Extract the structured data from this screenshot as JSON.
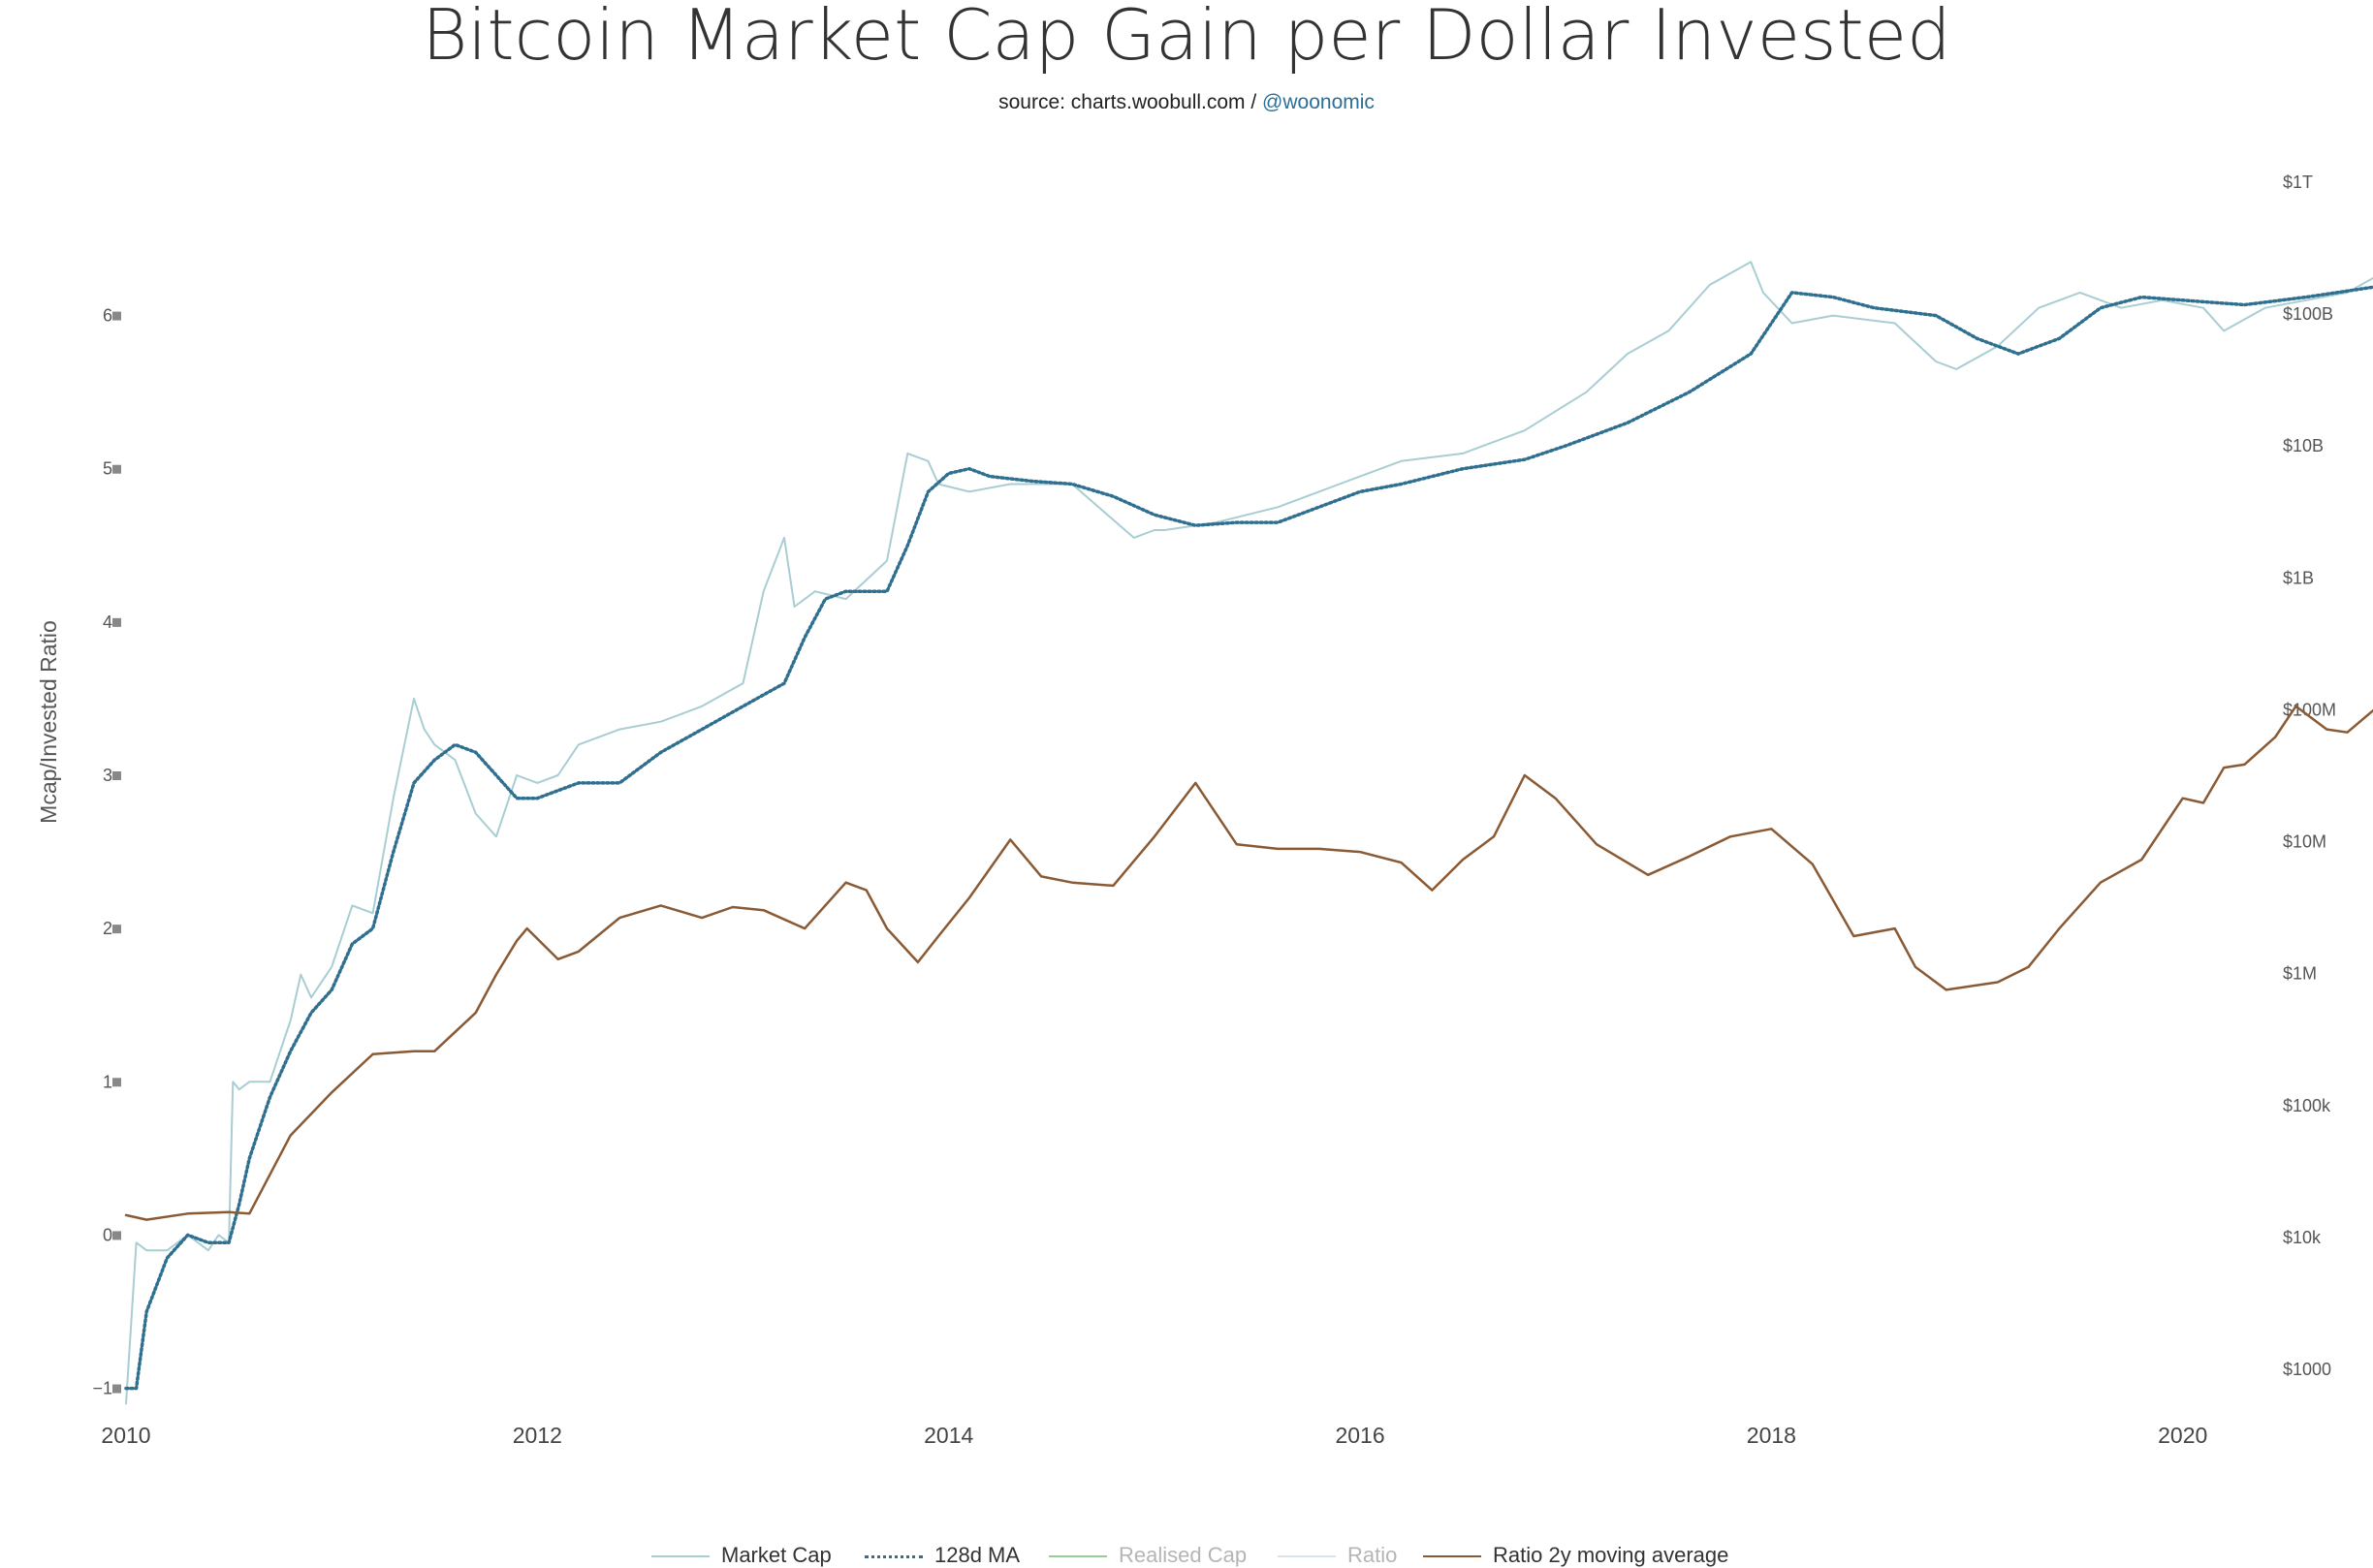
{
  "header": {
    "title": "Bitcoin Market Cap Gain per Dollar Invested",
    "subtitle_prefix": "source: charts.woobull.com / ",
    "subtitle_handle": "@woonomic"
  },
  "colors": {
    "market_cap": "#a8cdd3",
    "ma128": "#2f6f8f",
    "realised_cap": "#98cc98",
    "ratio": "#d9e3ea",
    "ratio_2y": "#8a5a34",
    "axis_text": "#555555",
    "handle": "#2a6f97"
  },
  "chart_data": {
    "type": "line",
    "title": "Bitcoin Market Cap Gain per Dollar Invested",
    "subtitle": "source: charts.woobull.com / @woonomic",
    "ylabel": "Mcap/Invested Ratio",
    "xlim": [
      2010.0,
      2021.5
    ],
    "ylim": [
      -1.3,
      7.3
    ],
    "y2_scale": "log",
    "y2_ticks": [
      "$1000",
      "$10k",
      "$100k",
      "$1M",
      "$10M",
      "$100M",
      "$1B",
      "$10B",
      "$100B",
      "$1T"
    ],
    "y_ticks": [
      "−1",
      "0",
      "1",
      "2",
      "3",
      "4",
      "5",
      "6"
    ],
    "x_ticks": [
      "2010",
      "2012",
      "2014",
      "2016",
      "2018",
      "2020"
    ],
    "grid": false,
    "legend_position": "bottom",
    "series": [
      {
        "name": "Market Cap",
        "axis": "y",
        "x": [
          2010.0,
          2010.05,
          2010.1,
          2010.2,
          2010.3,
          2010.4,
          2010.45,
          2010.5,
          2010.52,
          2010.55,
          2010.6,
          2010.7,
          2010.8,
          2010.85,
          2010.9,
          2011.0,
          2011.1,
          2011.2,
          2011.3,
          2011.4,
          2011.45,
          2011.5,
          2011.6,
          2011.7,
          2011.8,
          2011.9,
          2012.0,
          2012.1,
          2012.2,
          2012.4,
          2012.6,
          2012.8,
          2013.0,
          2013.1,
          2013.2,
          2013.25,
          2013.35,
          2013.5,
          2013.7,
          2013.8,
          2013.9,
          2013.95,
          2014.1,
          2014.3,
          2014.6,
          2014.9,
          2015.0,
          2015.05,
          2015.3,
          2015.6,
          2015.9,
          2016.2,
          2016.5,
          2016.8,
          2017.1,
          2017.3,
          2017.5,
          2017.7,
          2017.9,
          2017.96,
          2018.1,
          2018.3,
          2018.6,
          2018.8,
          2018.9,
          2019.1,
          2019.3,
          2019.5,
          2019.7,
          2019.9,
          2020.1,
          2020.2,
          2020.4,
          2020.6,
          2020.8,
          2021.0,
          2021.1
        ],
        "values": [
          -1.1,
          -0.05,
          -0.1,
          -0.1,
          0.0,
          -0.1,
          0.0,
          -0.05,
          1.0,
          0.95,
          1.0,
          1.0,
          1.4,
          1.7,
          1.55,
          1.75,
          2.15,
          2.1,
          2.85,
          3.5,
          3.3,
          3.2,
          3.1,
          2.75,
          2.6,
          3.0,
          2.95,
          3.0,
          3.2,
          3.3,
          3.35,
          3.45,
          3.6,
          4.2,
          4.55,
          4.1,
          4.2,
          4.15,
          4.4,
          5.1,
          5.05,
          4.9,
          4.85,
          4.9,
          4.9,
          4.55,
          4.6,
          4.6,
          4.65,
          4.75,
          4.9,
          5.05,
          5.1,
          5.25,
          5.5,
          5.75,
          5.9,
          6.2,
          6.35,
          6.15,
          5.95,
          6.0,
          5.95,
          5.7,
          5.65,
          5.8,
          6.05,
          6.15,
          6.05,
          6.1,
          6.05,
          5.9,
          6.05,
          6.1,
          6.15,
          6.3,
          6.4
        ]
      },
      {
        "name": "128d MA",
        "axis": "y",
        "x": [
          2010.0,
          2010.05,
          2010.1,
          2010.2,
          2010.3,
          2010.4,
          2010.5,
          2010.55,
          2010.6,
          2010.7,
          2010.8,
          2010.9,
          2011.0,
          2011.1,
          2011.2,
          2011.3,
          2011.4,
          2011.5,
          2011.6,
          2011.7,
          2011.8,
          2011.9,
          2012.0,
          2012.2,
          2012.4,
          2012.6,
          2012.8,
          2013.0,
          2013.2,
          2013.3,
          2013.4,
          2013.5,
          2013.7,
          2013.8,
          2013.9,
          2014.0,
          2014.1,
          2014.2,
          2014.4,
          2014.6,
          2014.8,
          2015.0,
          2015.2,
          2015.4,
          2015.6,
          2015.8,
          2016.0,
          2016.2,
          2016.5,
          2016.8,
          2017.0,
          2017.3,
          2017.6,
          2017.9,
          2018.1,
          2018.3,
          2018.5,
          2018.8,
          2019.0,
          2019.2,
          2019.4,
          2019.6,
          2019.8,
          2020.0,
          2020.3,
          2020.6,
          2020.9,
          2021.1
        ],
        "values": [
          -1.0,
          -1.0,
          -0.5,
          -0.15,
          0.0,
          -0.05,
          -0.05,
          0.2,
          0.5,
          0.9,
          1.2,
          1.45,
          1.6,
          1.9,
          2.0,
          2.5,
          2.95,
          3.1,
          3.2,
          3.15,
          3.0,
          2.85,
          2.85,
          2.95,
          2.95,
          3.15,
          3.3,
          3.45,
          3.6,
          3.9,
          4.15,
          4.2,
          4.2,
          4.5,
          4.85,
          4.97,
          5.0,
          4.95,
          4.92,
          4.9,
          4.82,
          4.7,
          4.63,
          4.65,
          4.65,
          4.75,
          4.85,
          4.9,
          5.0,
          5.06,
          5.15,
          5.3,
          5.5,
          5.75,
          6.15,
          6.12,
          6.05,
          6.0,
          5.85,
          5.75,
          5.85,
          6.05,
          6.12,
          6.1,
          6.07,
          6.12,
          6.18,
          6.22
        ]
      },
      {
        "name": "Realised Cap",
        "axis": "y2",
        "x": [],
        "values": []
      },
      {
        "name": "Ratio",
        "axis": "y",
        "x": [],
        "values": []
      },
      {
        "name": "Ratio 2y moving average",
        "axis": "y",
        "x": [
          2010.0,
          2010.1,
          2010.3,
          2010.5,
          2010.6,
          2010.8,
          2011.0,
          2011.2,
          2011.4,
          2011.5,
          2011.7,
          2011.8,
          2011.9,
          2011.95,
          2012.1,
          2012.2,
          2012.4,
          2012.6,
          2012.8,
          2012.95,
          2013.1,
          2013.3,
          2013.5,
          2013.6,
          2013.7,
          2013.85,
          2013.95,
          2014.1,
          2014.3,
          2014.45,
          2014.6,
          2014.8,
          2015.0,
          2015.2,
          2015.4,
          2015.6,
          2015.8,
          2016.0,
          2016.2,
          2016.35,
          2016.5,
          2016.65,
          2016.8,
          2016.95,
          2017.15,
          2017.4,
          2017.6,
          2017.8,
          2018.0,
          2018.2,
          2018.4,
          2018.6,
          2018.7,
          2018.85,
          2019.1,
          2019.25,
          2019.4,
          2019.6,
          2019.8,
          2020.0,
          2020.1,
          2020.2,
          2020.3,
          2020.45,
          2020.55,
          2020.7,
          2020.8,
          2020.95,
          2021.1
        ],
        "values": [
          0.13,
          0.1,
          0.14,
          0.15,
          0.14,
          0.65,
          0.93,
          1.18,
          1.2,
          1.2,
          1.45,
          1.7,
          1.92,
          2.0,
          1.8,
          1.85,
          2.07,
          2.15,
          2.07,
          2.14,
          2.12,
          2.0,
          2.3,
          2.25,
          2.0,
          1.78,
          1.95,
          2.2,
          2.58,
          2.34,
          2.3,
          2.28,
          2.6,
          2.95,
          2.55,
          2.52,
          2.52,
          2.5,
          2.43,
          2.25,
          2.45,
          2.6,
          3.0,
          2.85,
          2.55,
          2.35,
          2.47,
          2.6,
          2.65,
          2.42,
          1.95,
          2.0,
          1.75,
          1.6,
          1.65,
          1.75,
          2.0,
          2.3,
          2.45,
          2.85,
          2.82,
          3.05,
          3.07,
          3.25,
          3.45,
          3.3,
          3.28,
          3.45,
          3.52
        ]
      }
    ]
  },
  "legend": {
    "items": [
      {
        "label": "Market Cap"
      },
      {
        "label": "128d MA"
      },
      {
        "label": "Realised Cap"
      },
      {
        "label": "Ratio"
      },
      {
        "label": "Ratio 2y moving average"
      }
    ]
  }
}
